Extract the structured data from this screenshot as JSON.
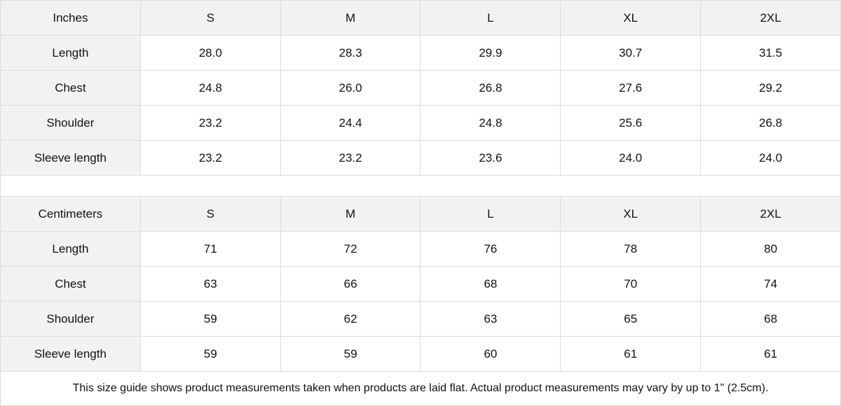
{
  "tables": [
    {
      "unit": "Inches",
      "sizes": [
        "S",
        "M",
        "L",
        "XL",
        "2XL"
      ],
      "rows": [
        {
          "label": "Length",
          "values": [
            "28.0",
            "28.3",
            "29.9",
            "30.7",
            "31.5"
          ]
        },
        {
          "label": "Chest",
          "values": [
            "24.8",
            "26.0",
            "26.8",
            "27.6",
            "29.2"
          ]
        },
        {
          "label": "Shoulder",
          "values": [
            "23.2",
            "24.4",
            "24.8",
            "25.6",
            "26.8"
          ]
        },
        {
          "label": "Sleeve length",
          "values": [
            "23.2",
            "23.2",
            "23.6",
            "24.0",
            "24.0"
          ]
        }
      ]
    },
    {
      "unit": "Centimeters",
      "sizes": [
        "S",
        "M",
        "L",
        "XL",
        "2XL"
      ],
      "rows": [
        {
          "label": "Length",
          "values": [
            "71",
            "72",
            "76",
            "78",
            "80"
          ]
        },
        {
          "label": "Chest",
          "values": [
            "63",
            "66",
            "68",
            "70",
            "74"
          ]
        },
        {
          "label": "Shoulder",
          "values": [
            "59",
            "62",
            "63",
            "65",
            "68"
          ]
        },
        {
          "label": "Sleeve length",
          "values": [
            "59",
            "59",
            "60",
            "61",
            "61"
          ]
        }
      ]
    }
  ],
  "note": "This size guide shows product measurements taken when products are laid flat.  Actual product measurements may vary by up to 1\" (2.5cm)."
}
